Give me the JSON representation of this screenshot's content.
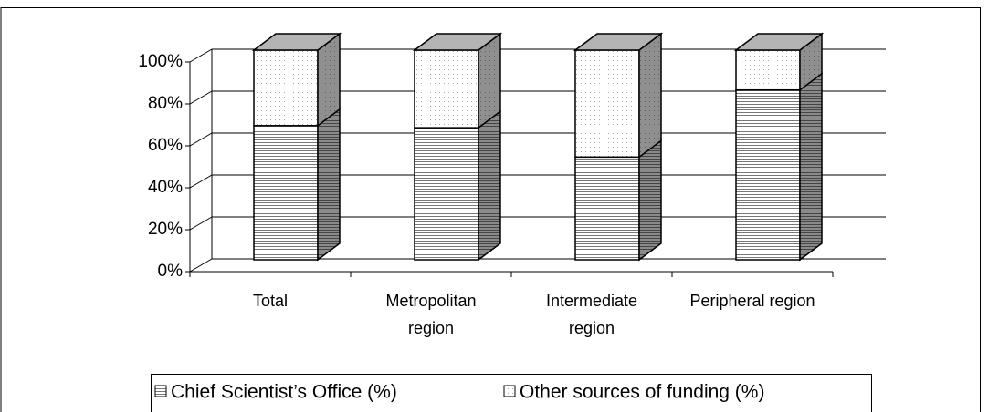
{
  "chart_data": {
    "type": "bar",
    "stacked": true,
    "categories": [
      "Total",
      "Metropolitan region",
      "Intermediate region",
      "Peripheral region"
    ],
    "series": [
      {
        "name": "Chief Scientist’s Office (%)",
        "color": "#ffffff",
        "values": [
          64,
          63,
          49,
          81
        ]
      },
      {
        "name": "Other sources of funding (%)",
        "color": "#ffffff",
        "values": [
          36,
          37,
          51,
          19
        ]
      }
    ],
    "ylim": [
      0,
      100
    ],
    "yticks": [
      {
        "value": 0,
        "label": "0%"
      },
      {
        "value": 20,
        "label": "20%"
      },
      {
        "value": 40,
        "label": "40%"
      },
      {
        "value": 60,
        "label": "60%"
      },
      {
        "value": 80,
        "label": "80%"
      },
      {
        "value": 100,
        "label": "100%"
      }
    ],
    "grid": true,
    "legend": "bottom"
  }
}
